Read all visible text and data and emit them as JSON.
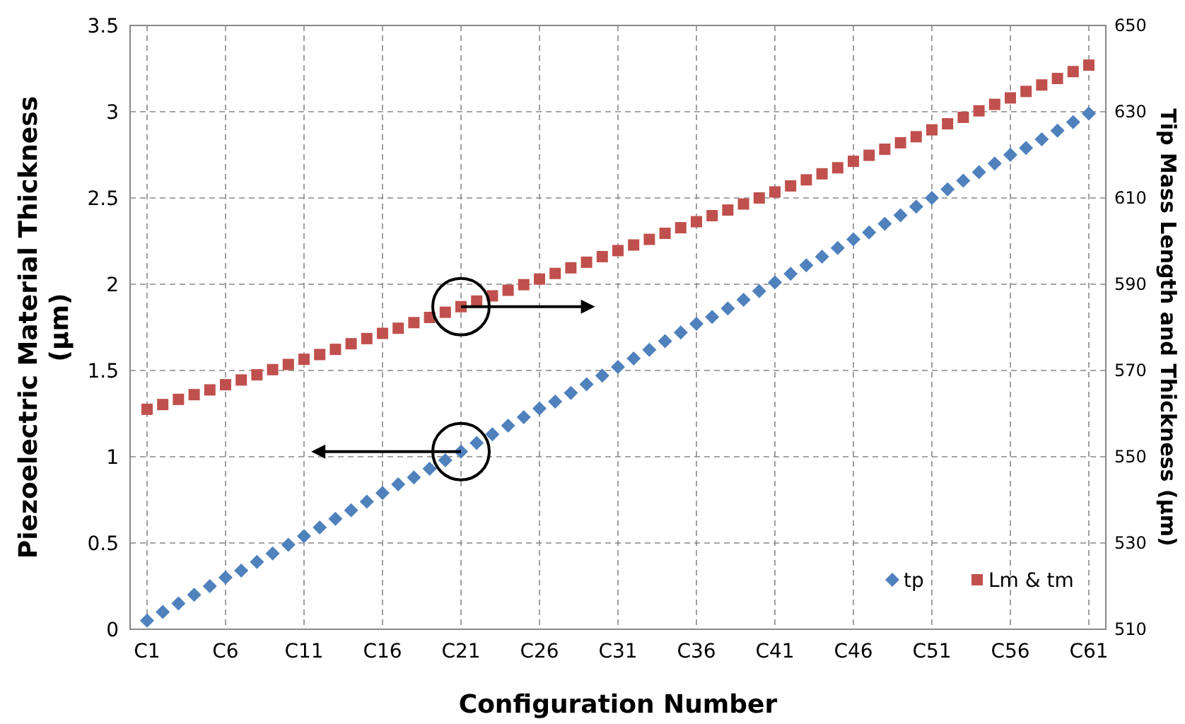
{
  "chart_data": {
    "type": "scatter",
    "xlabel": "Configuration Number",
    "ylabel": "Piezoelectric Material Thickness (μm)",
    "y2label": "Tip Mass Length and Thickness (μm)",
    "categories": [
      "C1",
      null,
      null,
      null,
      null,
      "C6",
      null,
      null,
      null,
      null,
      "C11",
      null,
      null,
      null,
      null,
      "C16",
      null,
      null,
      null,
      null,
      "C21",
      null,
      null,
      null,
      null,
      "C26",
      null,
      null,
      null,
      null,
      "C31",
      null,
      null,
      null,
      null,
      "C36",
      null,
      null,
      null,
      null,
      "C41",
      null,
      null,
      null,
      null,
      "C46",
      null,
      null,
      null,
      null,
      "C51",
      null,
      null,
      null,
      null,
      "C56",
      null,
      null,
      null,
      null,
      "C61"
    ],
    "series": [
      {
        "name": "tp",
        "color": "#4f81bd",
        "marker": "diamond",
        "values": [
          0.05,
          0.1,
          0.15,
          0.2,
          0.25,
          0.3,
          0.34,
          0.39,
          0.44,
          0.49,
          0.54,
          0.59,
          0.64,
          0.69,
          0.74,
          0.79,
          0.84,
          0.88,
          0.93,
          0.98,
          1.03,
          1.08,
          1.13,
          1.18,
          1.23,
          1.28,
          1.32,
          1.37,
          1.42,
          1.47,
          1.52,
          1.57,
          1.62,
          1.67,
          1.72,
          1.77,
          1.81,
          1.86,
          1.91,
          1.96,
          2.01,
          2.06,
          2.11,
          2.16,
          2.21,
          2.26,
          2.3,
          2.35,
          2.4,
          2.45,
          2.5,
          2.55,
          2.6,
          2.65,
          2.7,
          2.75,
          2.79,
          2.84,
          2.89,
          2.94,
          2.99
        ]
      },
      {
        "name": "Lm & tm",
        "color": "#c0504d",
        "marker": "square",
        "axis": "y2",
        "values": [
          561.0,
          562.1,
          563.3,
          564.4,
          565.5,
          566.7,
          567.8,
          569.0,
          570.2,
          571.4,
          572.6,
          573.7,
          574.9,
          576.2,
          577.4,
          578.6,
          579.8,
          581.1,
          582.3,
          583.5,
          584.8,
          586.1,
          587.3,
          588.6,
          589.9,
          591.2,
          592.5,
          593.8,
          595.1,
          596.4,
          597.8,
          599.1,
          600.4,
          601.8,
          603.1,
          604.5,
          605.9,
          607.2,
          608.6,
          610.0,
          611.4,
          612.8,
          614.2,
          615.6,
          617.0,
          618.5,
          619.9,
          621.3,
          622.8,
          624.2,
          625.8,
          627.2,
          628.7,
          630.2,
          631.7,
          633.2,
          634.7,
          636.2,
          637.7,
          639.3,
          640.8
        ]
      }
    ],
    "ylim": [
      0,
      3.5
    ],
    "yticks": [
      0,
      0.5,
      1,
      1.5,
      2,
      2.5,
      3,
      3.5
    ],
    "y2lim": [
      510,
      650
    ],
    "y2ticks": [
      510,
      530,
      550,
      570,
      590,
      610,
      630,
      650
    ],
    "grid": true,
    "legend": "bottom right"
  }
}
